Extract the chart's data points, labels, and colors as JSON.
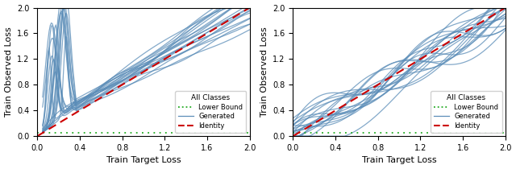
{
  "xlim": [
    0.0,
    2.0
  ],
  "ylim": [
    0.0,
    2.0
  ],
  "xticks": [
    0.0,
    0.4,
    0.8,
    1.2,
    1.6,
    2.0
  ],
  "yticks": [
    0.0,
    0.4,
    0.8,
    1.2,
    1.6,
    2.0
  ],
  "xlabel": "Train Target Loss",
  "ylabel": "Train Observed Loss",
  "lower_bound_y": 0.05,
  "identity_color": "#cc0000",
  "lower_bound_color": "#22aa22",
  "line_color": "#5b8db8",
  "line_alpha": 0.75,
  "legend_title": "All Classes",
  "legend_labels": [
    "Lower Bound",
    "Generated",
    "Identity"
  ],
  "figsize": [
    6.4,
    2.1
  ],
  "dpi": 100
}
